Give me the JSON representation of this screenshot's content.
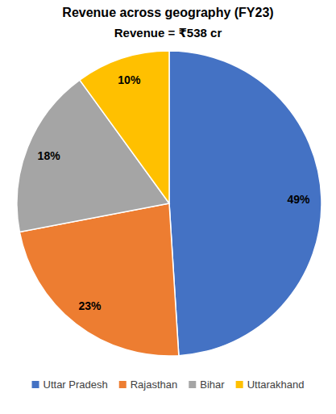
{
  "chart_data": {
    "type": "pie",
    "title": "Revenue across geography (FY23)",
    "subtitle": "Revenue = ₹538 cr",
    "categories": [
      "Uttar Pradesh",
      "Rajasthan",
      "Bihar",
      "Uttarakhand"
    ],
    "values": [
      49,
      23,
      18,
      10
    ],
    "value_labels": [
      "49%",
      "23%",
      "18%",
      "10%"
    ],
    "colors": [
      "#4472c4",
      "#ed7d31",
      "#a5a5a5",
      "#ffc000"
    ],
    "data_labels": true,
    "legend": "bottom"
  }
}
